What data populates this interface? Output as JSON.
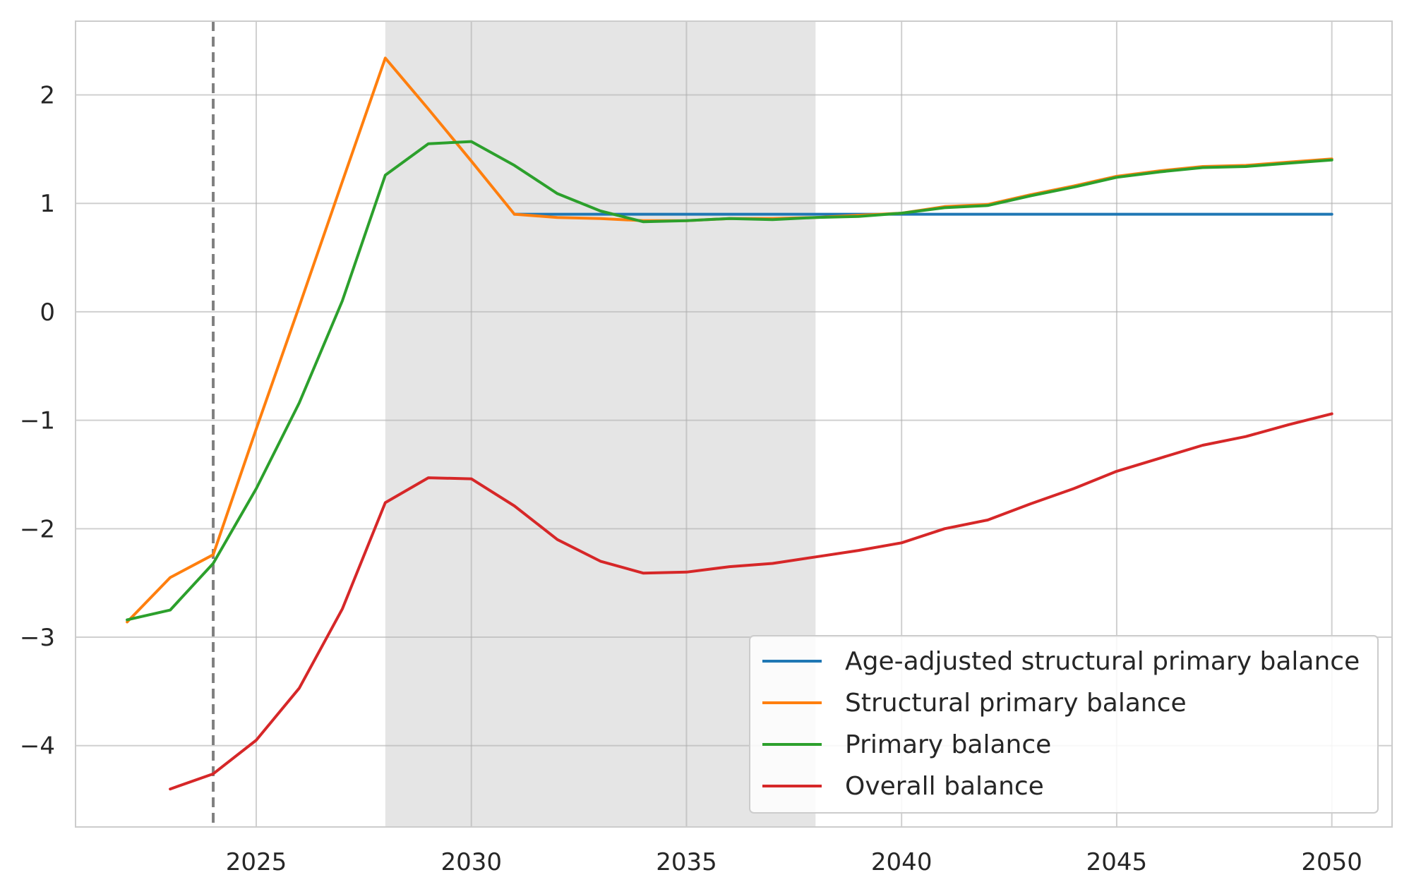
{
  "chart_data": {
    "type": "line",
    "title": "",
    "xlabel": "",
    "ylabel": "",
    "xlim": [
      2020.8,
      2051.4
    ],
    "ylim": [
      -4.75,
      2.68
    ],
    "xticks": [
      2025,
      2030,
      2035,
      2040,
      2045,
      2050
    ],
    "yticks": [
      -4,
      -3,
      -2,
      -1,
      0,
      1,
      2
    ],
    "xtick_labels": [
      "2025",
      "2030",
      "2035",
      "2040",
      "2045",
      "2050"
    ],
    "ytick_labels": [
      "−4",
      "−3",
      "−2",
      "−1",
      "0",
      "1",
      "2"
    ],
    "grid": true,
    "legend_position": "lower-right",
    "vline": {
      "x": 2024,
      "style": "dashed",
      "color": "#808080"
    },
    "shaded_region": {
      "x_start": 2028,
      "x_end": 2038,
      "color": "#e5e5e5"
    },
    "series": [
      {
        "name": "Age-adjusted structural primary balance",
        "color": "#1f77b4",
        "x": [
          2031,
          2032,
          2033,
          2034,
          2035,
          2036,
          2037,
          2038,
          2039,
          2040,
          2041,
          2042,
          2043,
          2044,
          2045,
          2046,
          2047,
          2048,
          2049,
          2050
        ],
        "y": [
          0.9,
          0.9,
          0.9,
          0.9,
          0.9,
          0.9,
          0.9,
          0.9,
          0.9,
          0.9,
          0.9,
          0.9,
          0.9,
          0.9,
          0.9,
          0.9,
          0.9,
          0.9,
          0.9,
          0.9
        ]
      },
      {
        "name": "Structural primary balance",
        "color": "#ff7f0e",
        "x": [
          2022,
          2023,
          2024,
          2025,
          2026,
          2027,
          2028,
          2029,
          2030,
          2031,
          2032,
          2033,
          2034,
          2035,
          2036,
          2037,
          2038,
          2039,
          2040,
          2041,
          2042,
          2043,
          2044,
          2045,
          2046,
          2047,
          2048,
          2049,
          2050
        ],
        "y": [
          -2.86,
          -2.45,
          -2.24,
          -1.08,
          0.05,
          1.2,
          2.34,
          1.87,
          1.39,
          0.9,
          0.87,
          0.86,
          0.84,
          0.84,
          0.86,
          0.86,
          0.87,
          0.89,
          0.91,
          0.97,
          0.99,
          1.08,
          1.16,
          1.25,
          1.3,
          1.34,
          1.35,
          1.38,
          1.41
        ]
      },
      {
        "name": "Primary balance",
        "color": "#2ca02c",
        "x": [
          2022,
          2023,
          2024,
          2025,
          2026,
          2027,
          2028,
          2029,
          2030,
          2031,
          2032,
          2033,
          2034,
          2035,
          2036,
          2037,
          2038,
          2039,
          2040,
          2041,
          2042,
          2043,
          2044,
          2045,
          2046,
          2047,
          2048,
          2049,
          2050
        ],
        "y": [
          -2.84,
          -2.75,
          -2.32,
          -1.63,
          -0.84,
          0.1,
          1.26,
          1.55,
          1.57,
          1.35,
          1.09,
          0.93,
          0.83,
          0.84,
          0.86,
          0.85,
          0.87,
          0.88,
          0.91,
          0.96,
          0.98,
          1.07,
          1.15,
          1.24,
          1.29,
          1.33,
          1.34,
          1.37,
          1.4
        ]
      },
      {
        "name": "Overall balance",
        "color": "#d62728",
        "x": [
          2023,
          2024,
          2025,
          2026,
          2027,
          2028,
          2029,
          2030,
          2031,
          2032,
          2033,
          2034,
          2035,
          2036,
          2037,
          2038,
          2039,
          2040,
          2041,
          2042,
          2043,
          2044,
          2045,
          2046,
          2047,
          2048,
          2049,
          2050
        ],
        "y": [
          -4.4,
          -4.26,
          -3.95,
          -3.47,
          -2.74,
          -1.76,
          -1.53,
          -1.54,
          -1.79,
          -2.1,
          -2.3,
          -2.41,
          -2.4,
          -2.35,
          -2.32,
          -2.26,
          -2.2,
          -2.13,
          -2.0,
          -1.92,
          -1.77,
          -1.63,
          -1.47,
          -1.35,
          -1.23,
          -1.15,
          -1.04,
          -0.94
        ]
      }
    ]
  }
}
